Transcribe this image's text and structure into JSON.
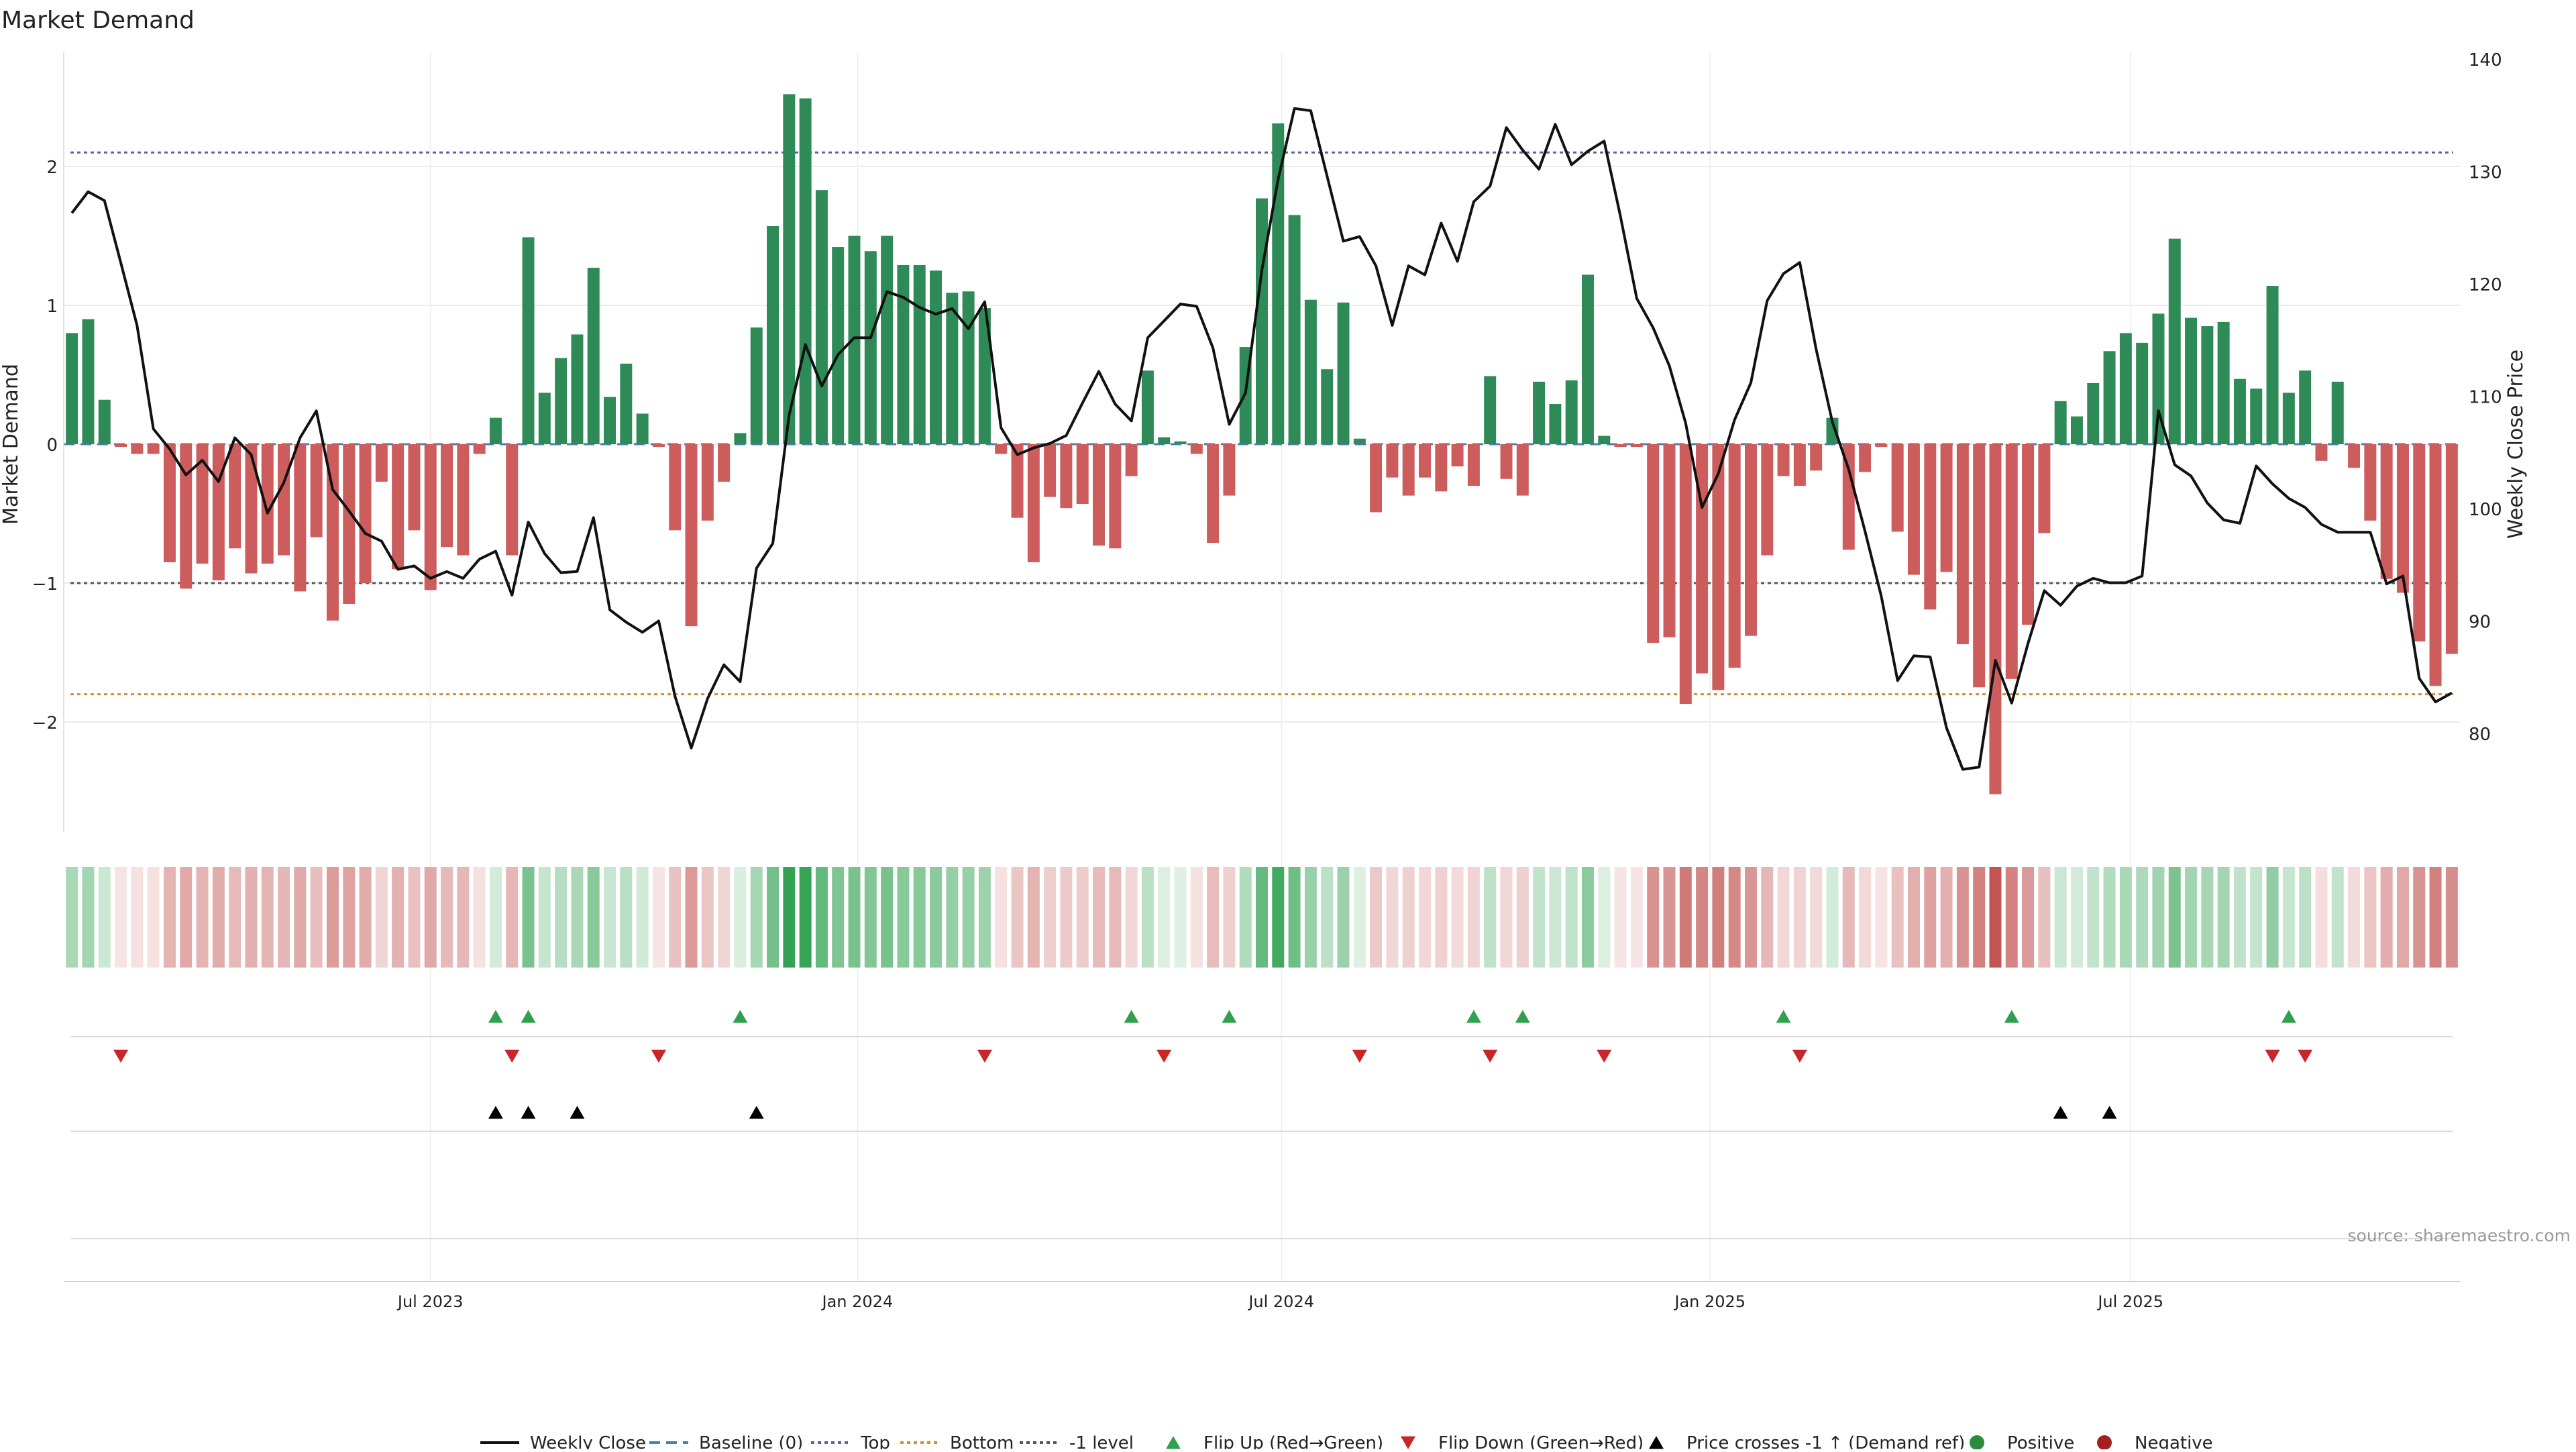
{
  "chart_data": {
    "type": "bar",
    "title": "Market Demand",
    "ylabel_left": "Market Demand",
    "ylabel_right": "Weekly Close Price",
    "source": "source: sharemaestro.com",
    "ylim_left": [
      -2.8,
      2.8
    ],
    "ylim_right": [
      70,
      140
    ],
    "left_ticks": [
      {
        "v": 2,
        "label": "2"
      },
      {
        "v": 1,
        "label": "1"
      },
      {
        "v": 0,
        "label": "0"
      },
      {
        "v": -1,
        "label": "−1"
      },
      {
        "v": -2,
        "label": "−2"
      }
    ],
    "right_ticks": [
      {
        "v": 140,
        "label": "140"
      },
      {
        "v": 130,
        "label": "130"
      },
      {
        "v": 120,
        "label": "120"
      },
      {
        "v": 110,
        "label": "110"
      },
      {
        "v": 100,
        "label": "100"
      },
      {
        "v": 90,
        "label": "90"
      },
      {
        "v": 80,
        "label": "80"
      }
    ],
    "x_ticks": [
      {
        "week": 22.5,
        "label": "Jul 2023"
      },
      {
        "week": 48.7,
        "label": "Jan 2024"
      },
      {
        "week": 74.7,
        "label": "Jul 2024"
      },
      {
        "week": 101.0,
        "label": "Jan 2025"
      },
      {
        "week": 126.8,
        "label": "Jul 2025"
      }
    ],
    "reference_lines": [
      {
        "name": "Top",
        "value": 2.1,
        "color": "#5b5fb0"
      },
      {
        "name": "Bottom",
        "value": -1.8,
        "color": "#e08a2c"
      },
      {
        "name": "-1 level",
        "value": -1.0,
        "color": "#555555"
      }
    ],
    "demand": [
      0.8,
      0.9,
      0.32,
      -0.02,
      -0.07,
      -0.07,
      -0.85,
      -1.04,
      -0.86,
      -0.98,
      -0.75,
      -0.93,
      -0.86,
      -0.8,
      -1.06,
      -0.67,
      -1.27,
      -1.15,
      -1.0,
      -0.27,
      -0.9,
      -0.62,
      -1.05,
      -0.74,
      -0.8,
      -0.07,
      0.19,
      -0.8,
      1.49,
      0.37,
      0.62,
      0.79,
      1.27,
      0.34,
      0.58,
      0.22,
      -0.02,
      -0.62,
      -1.31,
      -0.55,
      -0.27,
      0.08,
      0.84,
      1.57,
      2.52,
      2.49,
      1.83,
      1.42,
      1.5,
      1.39,
      1.5,
      1.29,
      1.29,
      1.25,
      1.09,
      1.1,
      0.98,
      -0.07,
      -0.53,
      -0.85,
      -0.38,
      -0.46,
      -0.43,
      -0.73,
      -0.75,
      -0.23,
      0.53,
      0.05,
      0.02,
      -0.07,
      -0.71,
      -0.37,
      0.7,
      1.77,
      2.31,
      1.65,
      1.04,
      0.54,
      1.02,
      0.04,
      -0.49,
      -0.24,
      -0.37,
      -0.24,
      -0.34,
      -0.16,
      -0.3,
      0.49,
      -0.25,
      -0.37,
      0.45,
      0.29,
      0.46,
      1.22,
      0.06,
      -0.02,
      -0.02,
      -1.43,
      -1.39,
      -1.87,
      -1.65,
      -1.77,
      -1.61,
      -1.38,
      -0.8,
      -0.23,
      -0.3,
      -0.19,
      0.19,
      -0.76,
      -0.2,
      -0.02,
      -0.63,
      -0.94,
      -1.19,
      -0.92,
      -1.44,
      -1.75,
      -2.52,
      -1.69,
      -1.3,
      -0.64,
      0.31,
      0.2,
      0.44,
      0.67,
      0.8,
      0.73,
      0.94,
      1.48,
      0.91,
      0.85,
      0.88,
      0.47,
      0.4,
      1.14,
      0.37,
      0.53,
      -0.12,
      0.45,
      -0.17,
      -0.55,
      -0.97,
      -1.07,
      -1.42,
      -1.74,
      -1.51
    ],
    "weekly_close": [
      126.3,
      128.2,
      127.4,
      121.9,
      116.3,
      107.1,
      105.3,
      103.0,
      104.3,
      102.4,
      106.3,
      104.8,
      99.6,
      102.3,
      106.3,
      108.7,
      101.7,
      99.8,
      97.8,
      97.1,
      94.6,
      94.9,
      93.8,
      94.4,
      93.8,
      95.5,
      96.2,
      92.3,
      98.8,
      96.0,
      94.3,
      94.4,
      99.2,
      91.0,
      89.9,
      89.0,
      90.0,
      83.3,
      78.7,
      83.1,
      86.1,
      84.6,
      94.7,
      96.9,
      108.3,
      114.6,
      110.9,
      113.7,
      115.2,
      115.2,
      119.3,
      118.8,
      117.9,
      117.3,
      117.8,
      116.0,
      118.4,
      107.2,
      104.8,
      105.4,
      105.8,
      106.5,
      109.4,
      112.2,
      109.3,
      107.8,
      115.2,
      116.7,
      118.2,
      118.0,
      114.3,
      107.5,
      110.3,
      121.2,
      129.3,
      135.6,
      135.4,
      129.6,
      123.8,
      124.2,
      121.6,
      116.3,
      121.6,
      120.8,
      125.4,
      122.0,
      127.3,
      128.7,
      133.9,
      131.9,
      130.2,
      134.2,
      130.6,
      131.8,
      132.7,
      126.0,
      118.7,
      116.1,
      112.7,
      107.6,
      100.1,
      103.1,
      107.9,
      111.2,
      118.5,
      120.9,
      121.9,
      114.2,
      107.7,
      103.5,
      98.0,
      92.2,
      84.7,
      86.9,
      86.8,
      80.5,
      76.8,
      77.0,
      86.5,
      82.7,
      88.0,
      92.7,
      91.4,
      93.1,
      93.8,
      93.4,
      93.4,
      94.0,
      108.7,
      103.9,
      102.9,
      100.5,
      99.0,
      98.7,
      103.8,
      102.2,
      100.9,
      100.1,
      98.6,
      97.9,
      97.9,
      97.9,
      93.3,
      94.0,
      84.9,
      82.8,
      83.6
    ],
    "flip_up_weeks": [
      26,
      28,
      41,
      65,
      71,
      86,
      89,
      105,
      119,
      136
    ],
    "flip_down_weeks": [
      3,
      27,
      36,
      56,
      67,
      79,
      87,
      94,
      106,
      135,
      137
    ],
    "price_cross_weeks": [
      26,
      28,
      31,
      42,
      122,
      125
    ],
    "legend": [
      {
        "label": "Weekly Close",
        "kind": "line-solid",
        "color": "#111111"
      },
      {
        "label": "Baseline (0)",
        "kind": "line-dash",
        "color": "#4a7fb5"
      },
      {
        "label": "Top",
        "kind": "line-dot",
        "color": "#5b5fb0"
      },
      {
        "label": "Bottom",
        "kind": "line-dot",
        "color": "#e08a2c"
      },
      {
        "label": "-1 level",
        "kind": "line-dot",
        "color": "#555555"
      },
      {
        "label": "Flip Up (Red→Green)",
        "kind": "tri-up",
        "color": "#2ea04f"
      },
      {
        "label": "Flip Down (Green→Red)",
        "kind": "tri-down",
        "color": "#c8262b"
      },
      {
        "label": "Price crosses -1 ↑ (Demand ref)",
        "kind": "tri-up",
        "color": "#000000"
      },
      {
        "label": "Positive",
        "kind": "dot",
        "color": "#2a8b3b"
      },
      {
        "label": "Negative",
        "kind": "dot",
        "color": "#a32020"
      }
    ],
    "colors": {
      "positive_bar": "#2e8b57",
      "negative_bar": "#cd5c5c",
      "grid": "#ececec",
      "baseline": "#4a7fb5"
    }
  }
}
